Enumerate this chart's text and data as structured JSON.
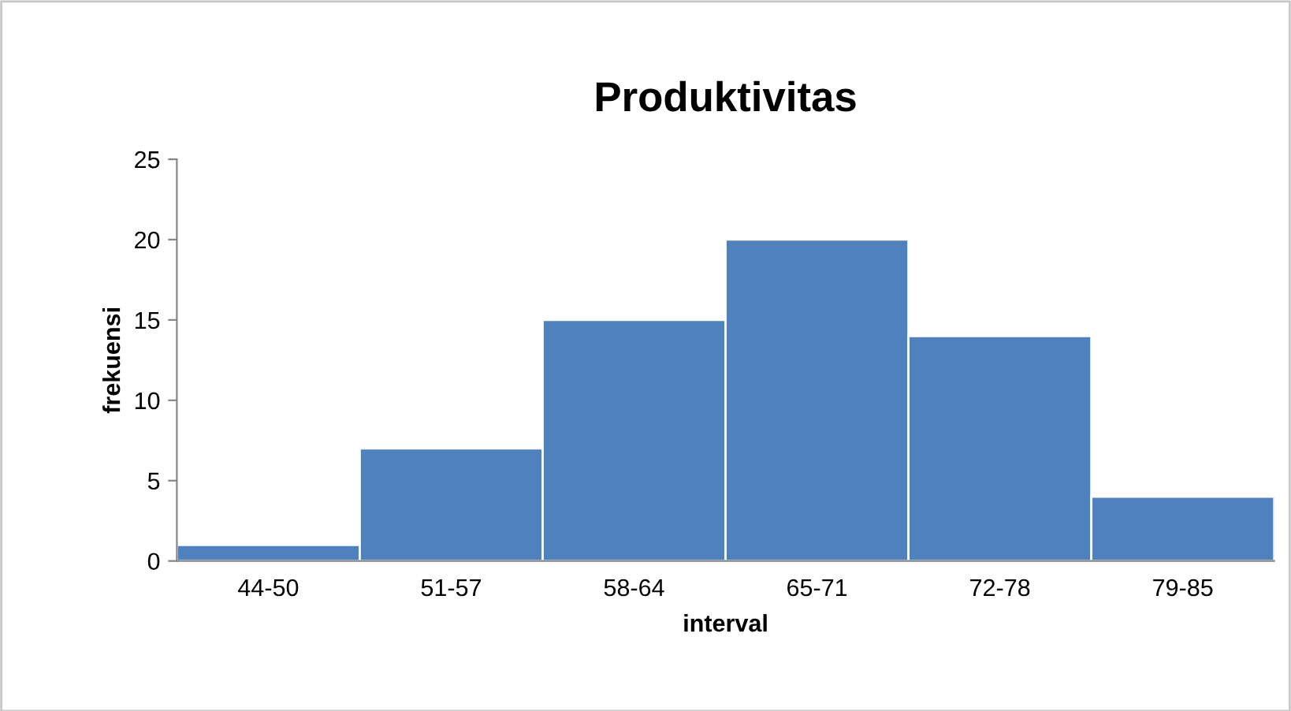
{
  "chart_data": {
    "type": "bar",
    "title": "Produktivitas",
    "xlabel": "interval",
    "ylabel": "frekuensi",
    "categories": [
      "44-50",
      "51-57",
      "58-64",
      "65-71",
      "72-78",
      "79-85"
    ],
    "values": [
      1,
      7,
      15,
      20,
      14,
      4
    ],
    "color": "#4f81bd",
    "ylim": [
      0,
      25
    ],
    "yticks": [
      0,
      5,
      10,
      15,
      20,
      25
    ],
    "grid": false,
    "legend": false
  }
}
